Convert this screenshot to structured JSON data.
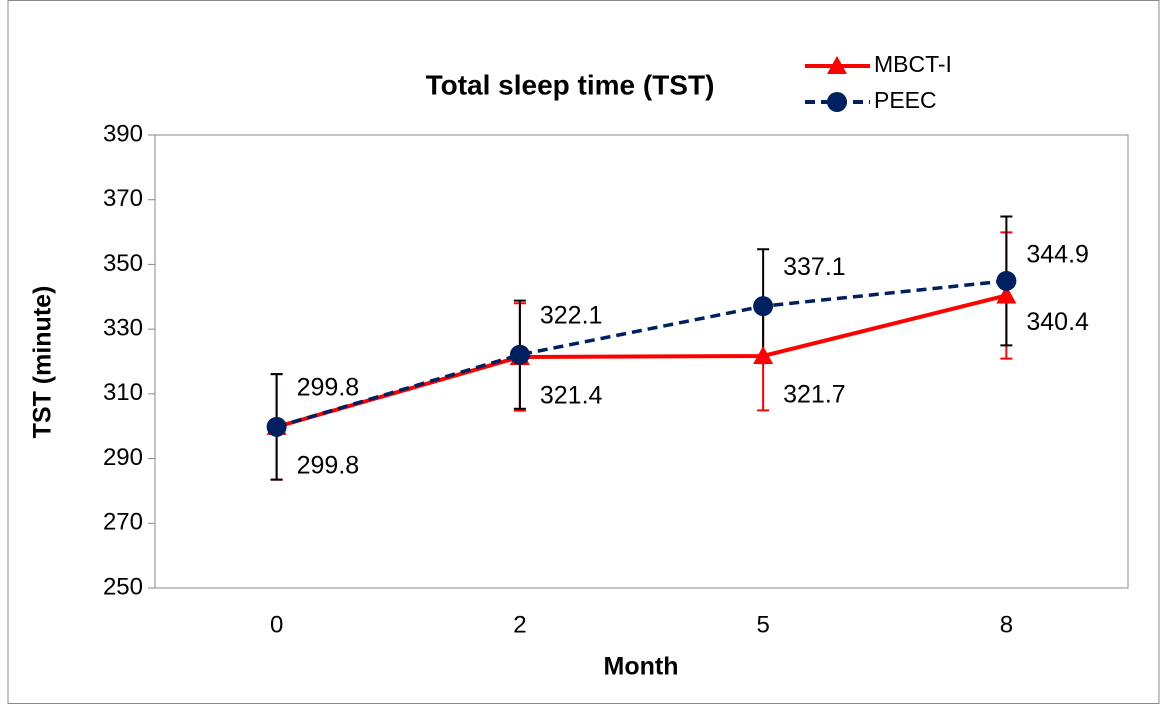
{
  "chart_data": {
    "type": "line",
    "title": "Total sleep time (TST)",
    "x_label": "Month",
    "y_label": "TST (minute)",
    "categories": [
      "0",
      "2",
      "5",
      "8"
    ],
    "ylim": [
      250,
      390
    ],
    "yticks": [
      250,
      270,
      290,
      310,
      330,
      350,
      370,
      390
    ],
    "series": [
      {
        "name": "MBCT-I",
        "color": "#ff0000",
        "values": [
          299.8,
          321.4,
          321.7,
          340.4
        ],
        "errors": [
          16.3,
          16.6,
          16.8,
          19.5
        ]
      },
      {
        "name": "PEEC",
        "color": "#002060",
        "values": [
          299.8,
          322.1,
          337.1,
          344.9
        ],
        "errors": [
          16.3,
          16.7,
          17.6,
          19.9
        ]
      }
    ]
  }
}
